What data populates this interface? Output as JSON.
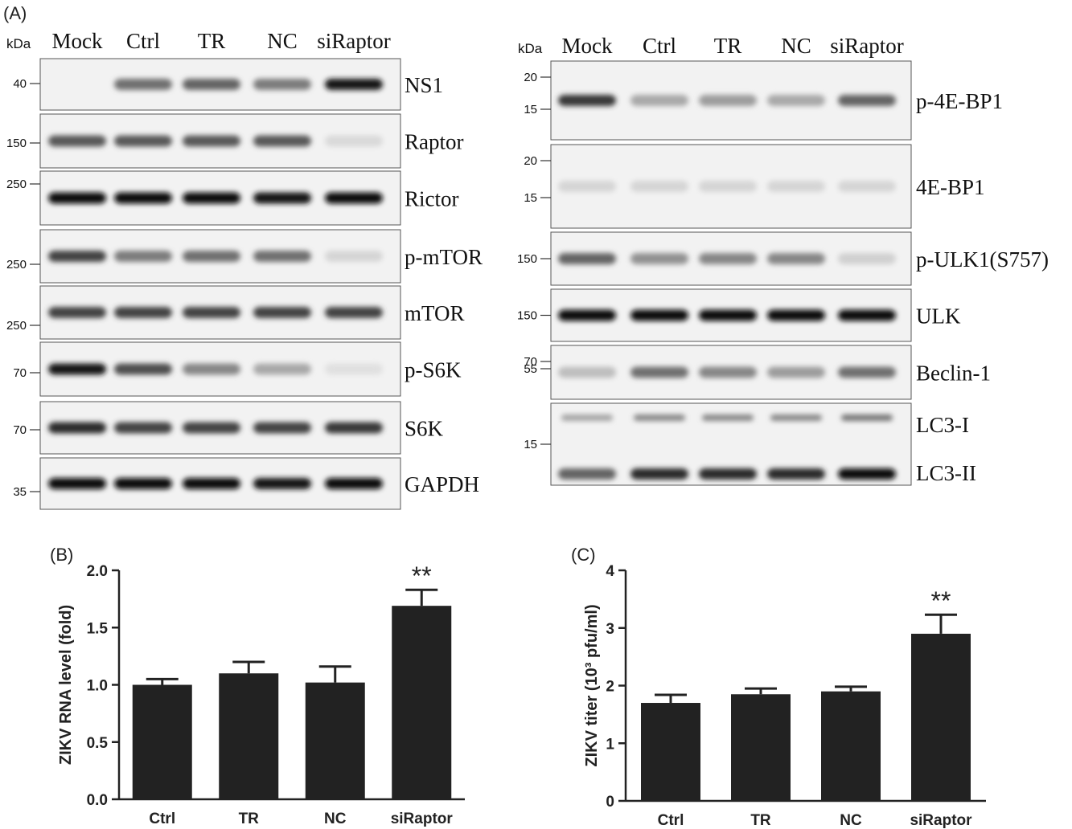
{
  "panel_labels": {
    "a": "(A)",
    "b": "(B)",
    "c": "(C)"
  },
  "blot_left": {
    "kda_label": "kDa",
    "lanes": [
      "Mock",
      "Ctrl",
      "TR",
      "NC",
      "siRaptor"
    ],
    "rows": [
      {
        "label": "NS1",
        "markers": [
          "40"
        ],
        "intensity": [
          0,
          0.55,
          0.6,
          0.5,
          0.95
        ]
      },
      {
        "label": "Raptor",
        "markers": [
          "150"
        ],
        "intensity": [
          0.65,
          0.65,
          0.65,
          0.65,
          0.08
        ]
      },
      {
        "label": "Rictor",
        "markers": [
          "250"
        ],
        "intensity": [
          1,
          1,
          1,
          0.95,
          1
        ]
      },
      {
        "label": "p-mTOR",
        "markers": [
          "250"
        ],
        "intensity": [
          0.75,
          0.5,
          0.55,
          0.55,
          0.1
        ]
      },
      {
        "label": "mTOR",
        "markers": [
          "250"
        ],
        "intensity": [
          0.75,
          0.75,
          0.75,
          0.75,
          0.75
        ]
      },
      {
        "label": "p-S6K",
        "markers": [
          "70"
        ],
        "intensity": [
          0.95,
          0.7,
          0.45,
          0.3,
          0.05
        ]
      },
      {
        "label": "S6K",
        "markers": [
          "70"
        ],
        "intensity": [
          0.85,
          0.75,
          0.75,
          0.75,
          0.8
        ]
      },
      {
        "label": "GAPDH",
        "markers": [
          "35"
        ],
        "intensity": [
          1,
          1,
          1,
          0.95,
          1
        ]
      }
    ]
  },
  "blot_right": {
    "kda_label": "kDa",
    "lanes": [
      "Mock",
      "Ctrl",
      "TR",
      "NC",
      "siRaptor"
    ],
    "rows": [
      {
        "label": "p-4E-BP1",
        "markers": [
          "20",
          "15"
        ],
        "intensity": [
          0.8,
          0.3,
          0.35,
          0.3,
          0.6
        ]
      },
      {
        "label": "4E-BP1",
        "markers": [
          "20",
          "15"
        ],
        "intensity": [
          0.1,
          0.1,
          0.1,
          0.1,
          0.1
        ]
      },
      {
        "label": "p-ULK1(S757)",
        "markers": [
          "150"
        ],
        "intensity": [
          0.6,
          0.4,
          0.45,
          0.45,
          0.12
        ]
      },
      {
        "label": "ULK",
        "markers": [
          "150"
        ],
        "intensity": [
          1,
          1,
          1,
          1,
          1
        ]
      },
      {
        "label": "Beclin-1",
        "markers": [
          "70",
          "55"
        ],
        "intensity": [
          0.2,
          0.55,
          0.45,
          0.35,
          0.55
        ]
      },
      {
        "label": "LC3-I",
        "label2": "LC3-II",
        "markers": [
          "15"
        ],
        "intensity": [
          0.6,
          0.85,
          0.85,
          0.85,
          1
        ]
      }
    ]
  },
  "charts": [
    {
      "panel": "(B)",
      "type": "bar",
      "categories": [
        "Ctrl",
        "TR",
        "NC",
        "siRaptor"
      ],
      "values": [
        1.0,
        1.1,
        1.02,
        1.69
      ],
      "errors": [
        0.05,
        0.1,
        0.14,
        0.14
      ],
      "significance": [
        "",
        "",
        "",
        "**"
      ],
      "ylabel": "ZIKV RNA level (fold)",
      "ylim": [
        0,
        2.0
      ],
      "yticks": [
        "0.0",
        "0.5",
        "1.0",
        "1.5",
        "2.0"
      ]
    },
    {
      "panel": "(C)",
      "type": "bar",
      "categories": [
        "Ctrl",
        "TR",
        "NC",
        "siRaptor"
      ],
      "values": [
        1.7,
        1.85,
        1.9,
        2.9
      ],
      "errors": [
        0.14,
        0.1,
        0.08,
        0.33
      ],
      "significance": [
        "",
        "",
        "",
        "**"
      ],
      "ylabel": "ZIKV titer (10³ pfu/ml)",
      "ylim": [
        0,
        4
      ],
      "yticks": [
        "0",
        "1",
        "2",
        "3",
        "4"
      ]
    }
  ]
}
